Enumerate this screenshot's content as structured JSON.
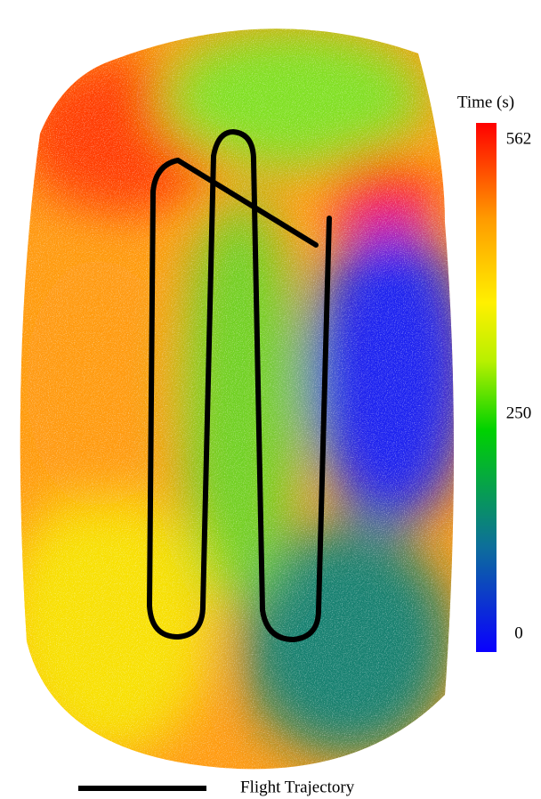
{
  "colorbar": {
    "title": "Time (s)",
    "range": [
      0,
      562
    ],
    "ticks": [
      0,
      250,
      562
    ]
  },
  "legend": {
    "label": "Flight Trajectory"
  }
}
